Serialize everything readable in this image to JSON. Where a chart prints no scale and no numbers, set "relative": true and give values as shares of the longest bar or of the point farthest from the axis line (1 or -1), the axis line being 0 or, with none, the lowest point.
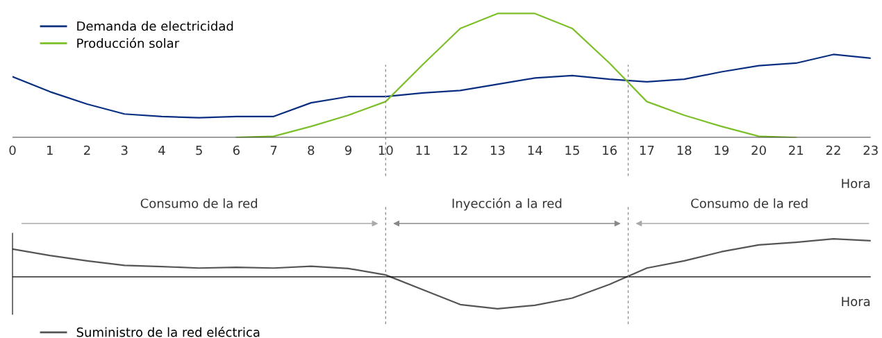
{
  "chart_data": [
    {
      "type": "line",
      "relative": true,
      "xlabel": "Hora",
      "x": [
        0,
        1,
        2,
        3,
        4,
        5,
        6,
        7,
        8,
        9,
        10,
        11,
        12,
        13,
        14,
        15,
        16,
        17,
        18,
        19,
        20,
        21,
        22,
        23
      ],
      "xlim": [
        0,
        23
      ],
      "xticks": [
        0,
        1,
        2,
        3,
        4,
        5,
        6,
        7,
        8,
        9,
        10,
        11,
        12,
        13,
        14,
        15,
        16,
        17,
        18,
        19,
        20,
        21,
        22,
        23
      ],
      "tick_labels": "x",
      "legend": "top left",
      "grid": false,
      "series": [
        {
          "name": "Demanda de electricidad",
          "color": "#0b2f80",
          "values": [
            0.49,
            0.37,
            0.27,
            0.19,
            0.17,
            0.16,
            0.17,
            0.17,
            0.28,
            0.33,
            0.33,
            0.36,
            0.38,
            0.43,
            0.48,
            0.5,
            0.47,
            0.45,
            0.47,
            0.53,
            0.58,
            0.6,
            0.67,
            0.64
          ]
        },
        {
          "name": "Producción solar",
          "color": "#7dbf2a",
          "values": [
            null,
            null,
            null,
            null,
            null,
            null,
            0,
            0.01,
            0.09,
            0.18,
            0.29,
            0.59,
            0.88,
            1,
            1,
            0.88,
            0.6,
            0.29,
            0.18,
            0.09,
            0.01,
            0,
            null,
            null
          ]
        }
      ],
      "ref_lines": [
        {
          "axis": "x",
          "value": 10,
          "color": "#888888",
          "line_style": "dashed"
        },
        {
          "axis": "x",
          "value": 16.5,
          "color": "#888888",
          "line_style": "dashed"
        }
      ]
    },
    {
      "type": "line",
      "relative": true,
      "xlabel": "Hora",
      "x": [
        0,
        1,
        2,
        3,
        4,
        5,
        6,
        7,
        8,
        9,
        10,
        11,
        12,
        13,
        14,
        15,
        16,
        17,
        18,
        19,
        20,
        21,
        22,
        23
      ],
      "xlim": [
        0,
        23
      ],
      "tick_labels": false,
      "legend": "bottom left",
      "grid": false,
      "series": [
        {
          "name": "Suministro de la red eléctrica",
          "color": "#555555",
          "values": [
            0.73,
            0.56,
            0.42,
            0.3,
            0.27,
            0.23,
            0.25,
            0.23,
            0.28,
            0.22,
            0.05,
            -0.34,
            -0.73,
            -0.84,
            -0.75,
            -0.56,
            -0.2,
            0.23,
            0.42,
            0.66,
            0.84,
            0.91,
            1,
            0.95
          ]
        }
      ],
      "ref_lines": [
        {
          "axis": "x",
          "value": 10,
          "color": "#888888",
          "line_style": "dashed"
        },
        {
          "axis": "x",
          "value": 16.5,
          "color": "#888888",
          "line_style": "dashed"
        }
      ],
      "annotations": [
        "Consumo de la red",
        "Inyección a la red",
        "Consumo de la red"
      ]
    }
  ]
}
